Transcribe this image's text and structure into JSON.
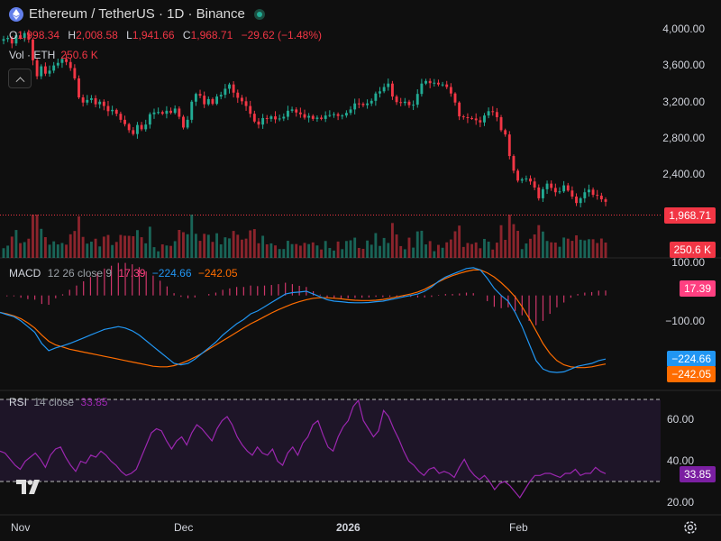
{
  "header": {
    "title": "Ethereum / TetherUS · 1D · Binance",
    "ohlc": [
      {
        "key": "O",
        "value": "1,998.34"
      },
      {
        "key": "H",
        "value": "2,008.58"
      },
      {
        "key": "L",
        "value": "1,941.66"
      },
      {
        "key": "C",
        "value": "1,968.71"
      }
    ],
    "change": "−29.62 (−1.48%)",
    "volume_label": "Vol · ETH",
    "volume_value": "250.6 K"
  },
  "price_axis": {
    "labels": [
      "4,000.00",
      "3,600.00",
      "3,200.00",
      "2,800.00",
      "2,400.00"
    ],
    "last_price": "1,968.71",
    "last_volume": "250.6 K"
  },
  "macd": {
    "label": "MACD",
    "params": "12 26 close 9",
    "hist": "17.39",
    "macd": "−224.66",
    "signal": "−242.05",
    "axis_labels": [
      "100.00",
      "−100.00"
    ]
  },
  "rsi": {
    "label": "RSI",
    "params": "14 close",
    "value": "33.85",
    "axis_labels": [
      "60.00",
      "40.00",
      "20.00"
    ]
  },
  "time_axis": [
    "Nov",
    "Dec",
    "2026",
    "Feb"
  ],
  "colors": {
    "up": "#22ab94",
    "down": "#f23645",
    "macd": "#2196f3",
    "signal": "#ff6d00",
    "rsi": "#9c27b0",
    "hist": "#ff4081"
  },
  "chart_data": {
    "type": "candlestick",
    "price_ylim": [
      1800,
      4100
    ],
    "closes": [
      3856,
      3870,
      3805,
      3900,
      3870,
      3925,
      3850,
      3610,
      3425,
      3540,
      3455,
      3490,
      3550,
      3580,
      3625,
      3590,
      3520,
      3400,
      3180,
      3120,
      3150,
      3170,
      3100,
      3130,
      3080,
      3020,
      3035,
      2990,
      2920,
      2870,
      2800,
      2755,
      2860,
      2810,
      2865,
      2985,
      3005,
      3010,
      2990,
      3025,
      3000,
      3050,
      2955,
      2830,
      2920,
      3130,
      3220,
      3200,
      3100,
      3160,
      3105,
      3190,
      3210,
      3280,
      3330,
      3235,
      3175,
      3135,
      3080,
      2990,
      2900,
      2865,
      2940,
      2930,
      2960,
      2925,
      2935,
      2955,
      3025,
      3040,
      3005,
      2985,
      2945,
      2965,
      2930,
      2945,
      2930,
      2970,
      2975,
      2985,
      2965,
      2970,
      3000,
      3040,
      3110,
      3105,
      3090,
      3110,
      3140,
      3225,
      3250,
      3300,
      3340,
      3190,
      3125,
      3115,
      3130,
      3090,
      3095,
      3220,
      3340,
      3370,
      3345,
      3350,
      3330,
      3330,
      3300,
      3225,
      3120,
      2960,
      2950,
      2940,
      2935,
      2915,
      2890,
      2970,
      3020,
      3010,
      2950,
      2800,
      2750,
      2500,
      2330,
      2215,
      2230,
      2240,
      2205,
      2135,
      2010,
      2115,
      2180,
      2130,
      2080,
      2090,
      2160,
      2100,
      2030,
      1955,
      2010,
      2080,
      2110,
      2050,
      2040,
      1998,
      1968.71
    ],
    "macd_ylim": [
      -310,
      120
    ],
    "macd_line": [
      -60,
      -68,
      -75,
      -90,
      -110,
      -130,
      -170,
      -195,
      -185,
      -178,
      -170,
      -160,
      -150,
      -140,
      -130,
      -120,
      -115,
      -110,
      -115,
      -125,
      -140,
      -160,
      -180,
      -200,
      -220,
      -240,
      -245,
      -240,
      -225,
      -205,
      -185,
      -165,
      -140,
      -120,
      -100,
      -85,
      -65,
      -55,
      -40,
      -25,
      -10,
      5,
      10,
      12,
      15,
      5,
      -5,
      -15,
      -20,
      -22,
      -25,
      -26,
      -26,
      -25,
      -22,
      -20,
      -15,
      -10,
      -5,
      0,
      5,
      15,
      30,
      50,
      65,
      75,
      85,
      95,
      98,
      90,
      60,
      25,
      0,
      -20,
      -60,
      -110,
      -170,
      -230,
      -260,
      -270,
      -272,
      -270,
      -260,
      -250,
      -245,
      -240,
      -230,
      -224.66
    ],
    "signal_line": [
      -60,
      -65,
      -72,
      -82,
      -97,
      -115,
      -140,
      -162,
      -175,
      -182,
      -190,
      -195,
      -200,
      -205,
      -210,
      -215,
      -220,
      -225,
      -230,
      -235,
      -240,
      -245,
      -250,
      -252,
      -252,
      -248,
      -240,
      -230,
      -218,
      -205,
      -190,
      -175,
      -160,
      -145,
      -130,
      -115,
      -100,
      -88,
      -75,
      -62,
      -50,
      -40,
      -30,
      -22,
      -15,
      -10,
      -8,
      -8,
      -10,
      -12,
      -15,
      -17,
      -18,
      -18,
      -17,
      -14,
      -10,
      -5,
      0,
      5,
      12,
      22,
      35,
      48,
      60,
      70,
      78,
      85,
      90,
      90,
      80,
      65,
      45,
      22,
      -5,
      -40,
      -80,
      -125,
      -170,
      -205,
      -230,
      -245,
      -252,
      -255,
      -255,
      -252,
      -247,
      -242.05
    ],
    "rsi_ylim": [
      14,
      74
    ],
    "rsi_values": [
      45,
      44,
      41,
      38,
      36,
      40,
      42,
      44,
      41,
      37,
      43,
      46,
      47,
      42,
      38,
      35,
      40,
      39,
      43,
      42,
      45,
      43,
      40,
      38,
      35,
      33,
      34,
      36,
      42,
      48,
      54,
      56,
      55,
      50,
      46,
      50,
      52,
      48,
      54,
      58,
      56,
      53,
      50,
      56,
      60,
      62,
      58,
      52,
      48,
      45,
      43,
      47,
      44,
      43,
      46,
      40,
      38,
      44,
      47,
      43,
      49,
      52,
      58,
      60,
      53,
      47,
      45,
      52,
      57,
      60,
      67,
      70,
      60,
      56,
      52,
      55,
      65,
      62,
      56,
      51,
      45,
      40,
      38,
      35,
      33,
      36,
      37,
      34,
      35,
      34,
      32,
      37,
      41,
      36,
      33,
      31,
      33,
      30,
      26,
      29,
      30,
      28,
      25,
      22,
      26,
      30,
      33,
      33,
      34,
      34,
      33,
      32,
      34,
      34,
      36,
      33,
      34,
      34,
      37,
      35,
      33.85
    ],
    "rsi_levels": [
      70,
      30
    ],
    "volume_max": 1000
  }
}
